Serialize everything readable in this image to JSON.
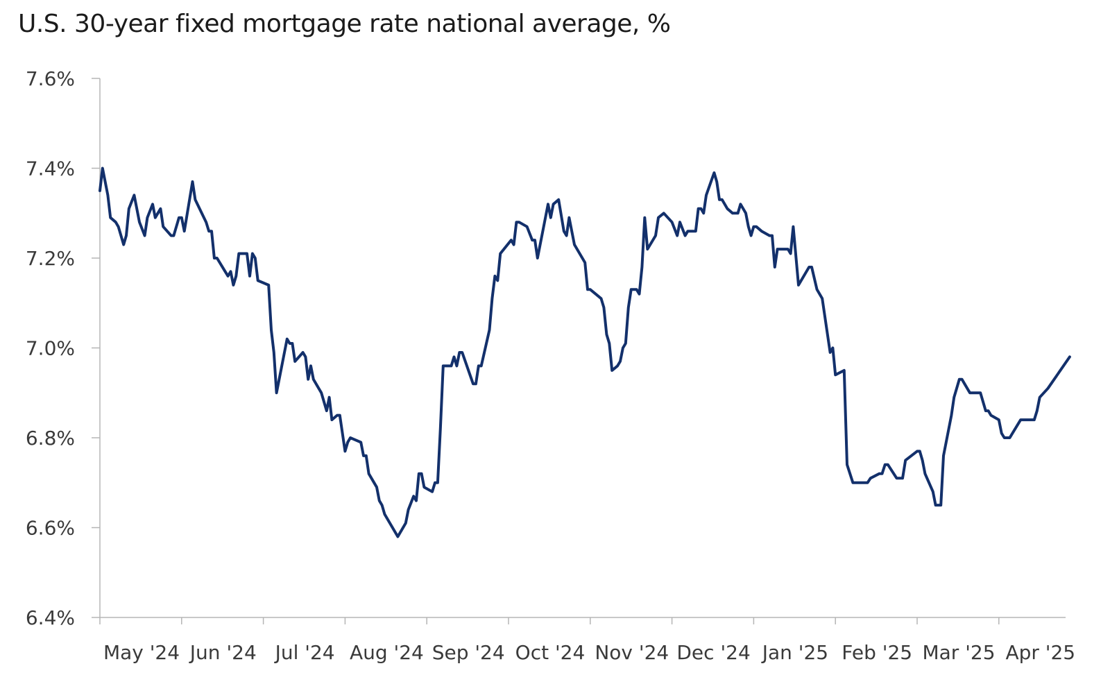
{
  "chart_data": {
    "type": "line",
    "title": "U.S. 30-year fixed mortgage rate national average, %",
    "xlabel": "",
    "ylabel": "",
    "ylim": [
      6.4,
      7.6
    ],
    "yticks": [
      "6.4%",
      "6.6%",
      "6.8%",
      "7.0%",
      "7.2%",
      "7.4%",
      "7.6%"
    ],
    "ytick_values": [
      6.4,
      6.6,
      6.8,
      7.0,
      7.2,
      7.4,
      7.6
    ],
    "xticks": [
      "May '24",
      "Jun '24",
      "Jul '24",
      "Aug '24",
      "Sep '24",
      "Oct '24",
      "Nov '24",
      "Dec '24",
      "Jan '25",
      "Feb '25",
      "Mar '25",
      "Apr '25"
    ],
    "xtick_months": [
      "2024-05",
      "2024-06",
      "2024-07",
      "2024-08",
      "2024-09",
      "2024-10",
      "2024-11",
      "2024-12",
      "2025-01",
      "2025-02",
      "2025-03",
      "2025-04"
    ],
    "grid": false,
    "line_color": "#13306b",
    "points": [
      [
        "2024-05-01",
        7.35
      ],
      [
        "2024-05-02",
        7.4
      ],
      [
        "2024-05-04",
        7.34
      ],
      [
        "2024-05-05",
        7.29
      ],
      [
        "2024-05-07",
        7.28
      ],
      [
        "2024-05-08",
        7.27
      ],
      [
        "2024-05-10",
        7.23
      ],
      [
        "2024-05-11",
        7.25
      ],
      [
        "2024-05-12",
        7.31
      ],
      [
        "2024-05-14",
        7.34
      ],
      [
        "2024-05-16",
        7.28
      ],
      [
        "2024-05-18",
        7.25
      ],
      [
        "2024-05-19",
        7.29
      ],
      [
        "2024-05-21",
        7.32
      ],
      [
        "2024-05-22",
        7.29
      ],
      [
        "2024-05-24",
        7.31
      ],
      [
        "2024-05-25",
        7.27
      ],
      [
        "2024-05-28",
        7.25
      ],
      [
        "2024-05-29",
        7.25
      ],
      [
        "2024-05-31",
        7.29
      ],
      [
        "2024-06-01",
        7.29
      ],
      [
        "2024-06-02",
        7.26
      ],
      [
        "2024-06-05",
        7.37
      ],
      [
        "2024-06-06",
        7.33
      ],
      [
        "2024-06-10",
        7.28
      ],
      [
        "2024-06-11",
        7.26
      ],
      [
        "2024-06-12",
        7.26
      ],
      [
        "2024-06-13",
        7.2
      ],
      [
        "2024-06-14",
        7.2
      ],
      [
        "2024-06-17",
        7.17
      ],
      [
        "2024-06-18",
        7.16
      ],
      [
        "2024-06-19",
        7.17
      ],
      [
        "2024-06-20",
        7.14
      ],
      [
        "2024-06-21",
        7.16
      ],
      [
        "2024-06-22",
        7.21
      ],
      [
        "2024-06-25",
        7.21
      ],
      [
        "2024-06-26",
        7.16
      ],
      [
        "2024-06-27",
        7.21
      ],
      [
        "2024-06-28",
        7.2
      ],
      [
        "2024-06-29",
        7.15
      ],
      [
        "2024-07-03",
        7.14
      ],
      [
        "2024-07-04",
        7.04
      ],
      [
        "2024-07-05",
        6.99
      ],
      [
        "2024-07-06",
        6.9
      ],
      [
        "2024-07-10",
        7.02
      ],
      [
        "2024-07-11",
        7.01
      ],
      [
        "2024-07-12",
        7.01
      ],
      [
        "2024-07-13",
        6.97
      ],
      [
        "2024-07-16",
        6.99
      ],
      [
        "2024-07-17",
        6.98
      ],
      [
        "2024-07-18",
        6.93
      ],
      [
        "2024-07-19",
        6.96
      ],
      [
        "2024-07-20",
        6.93
      ],
      [
        "2024-07-22",
        6.91
      ],
      [
        "2024-07-23",
        6.9
      ],
      [
        "2024-07-25",
        6.86
      ],
      [
        "2024-07-26",
        6.89
      ],
      [
        "2024-07-27",
        6.84
      ],
      [
        "2024-07-29",
        6.85
      ],
      [
        "2024-07-30",
        6.85
      ],
      [
        "2024-07-31",
        6.81
      ],
      [
        "2024-08-01",
        6.77
      ],
      [
        "2024-08-02",
        6.79
      ],
      [
        "2024-08-03",
        6.8
      ],
      [
        "2024-08-07",
        6.79
      ],
      [
        "2024-08-08",
        6.76
      ],
      [
        "2024-08-09",
        6.76
      ],
      [
        "2024-08-10",
        6.72
      ],
      [
        "2024-08-13",
        6.69
      ],
      [
        "2024-08-14",
        6.66
      ],
      [
        "2024-08-15",
        6.65
      ],
      [
        "2024-08-16",
        6.63
      ],
      [
        "2024-08-21",
        6.58
      ],
      [
        "2024-08-23",
        6.6
      ],
      [
        "2024-08-24",
        6.61
      ],
      [
        "2024-08-25",
        6.64
      ],
      [
        "2024-08-27",
        6.67
      ],
      [
        "2024-08-28",
        6.66
      ],
      [
        "2024-08-29",
        6.72
      ],
      [
        "2024-08-30",
        6.72
      ],
      [
        "2024-08-31",
        6.69
      ],
      [
        "2024-09-03",
        6.68
      ],
      [
        "2024-09-04",
        6.7
      ],
      [
        "2024-09-05",
        6.7
      ],
      [
        "2024-09-06",
        6.82
      ],
      [
        "2024-09-07",
        6.96
      ],
      [
        "2024-09-10",
        6.96
      ],
      [
        "2024-09-11",
        6.98
      ],
      [
        "2024-09-12",
        6.96
      ],
      [
        "2024-09-13",
        6.99
      ],
      [
        "2024-09-14",
        6.99
      ],
      [
        "2024-09-18",
        6.92
      ],
      [
        "2024-09-19",
        6.92
      ],
      [
        "2024-09-20",
        6.96
      ],
      [
        "2024-09-21",
        6.96
      ],
      [
        "2024-09-24",
        7.04
      ],
      [
        "2024-09-25",
        7.11
      ],
      [
        "2024-09-26",
        7.16
      ],
      [
        "2024-09-27",
        7.15
      ],
      [
        "2024-09-28",
        7.21
      ],
      [
        "2024-10-02",
        7.24
      ],
      [
        "2024-10-03",
        7.23
      ],
      [
        "2024-10-04",
        7.28
      ],
      [
        "2024-10-05",
        7.28
      ],
      [
        "2024-10-08",
        7.27
      ],
      [
        "2024-10-10",
        7.24
      ],
      [
        "2024-10-11",
        7.24
      ],
      [
        "2024-10-12",
        7.2
      ],
      [
        "2024-10-16",
        7.32
      ],
      [
        "2024-10-17",
        7.29
      ],
      [
        "2024-10-18",
        7.32
      ],
      [
        "2024-10-20",
        7.33
      ],
      [
        "2024-10-22",
        7.26
      ],
      [
        "2024-10-23",
        7.25
      ],
      [
        "2024-10-24",
        7.29
      ],
      [
        "2024-10-25",
        7.26
      ],
      [
        "2024-10-26",
        7.23
      ],
      [
        "2024-10-29",
        7.2
      ],
      [
        "2024-10-30",
        7.19
      ],
      [
        "2024-10-31",
        7.13
      ],
      [
        "2024-11-01",
        7.13
      ],
      [
        "2024-11-03",
        7.12
      ],
      [
        "2024-11-05",
        7.11
      ],
      [
        "2024-11-06",
        7.09
      ],
      [
        "2024-11-07",
        7.03
      ],
      [
        "2024-11-08",
        7.01
      ],
      [
        "2024-11-09",
        6.95
      ],
      [
        "2024-11-11",
        6.96
      ],
      [
        "2024-11-12",
        6.97
      ],
      [
        "2024-11-13",
        7.0
      ],
      [
        "2024-11-14",
        7.01
      ],
      [
        "2024-11-15",
        7.09
      ],
      [
        "2024-11-16",
        7.13
      ],
      [
        "2024-11-18",
        7.13
      ],
      [
        "2024-11-19",
        7.12
      ],
      [
        "2024-11-20",
        7.18
      ],
      [
        "2024-11-21",
        7.29
      ],
      [
        "2024-11-22",
        7.22
      ],
      [
        "2024-11-23",
        7.23
      ],
      [
        "2024-11-25",
        7.25
      ],
      [
        "2024-11-26",
        7.29
      ],
      [
        "2024-11-28",
        7.3
      ],
      [
        "2024-12-01",
        7.28
      ],
      [
        "2024-12-03",
        7.25
      ],
      [
        "2024-12-04",
        7.28
      ],
      [
        "2024-12-06",
        7.25
      ],
      [
        "2024-12-07",
        7.26
      ],
      [
        "2024-12-10",
        7.26
      ],
      [
        "2024-12-11",
        7.31
      ],
      [
        "2024-12-12",
        7.31
      ],
      [
        "2024-12-13",
        7.3
      ],
      [
        "2024-12-14",
        7.34
      ],
      [
        "2024-12-17",
        7.39
      ],
      [
        "2024-12-18",
        7.37
      ],
      [
        "2024-12-19",
        7.33
      ],
      [
        "2024-12-20",
        7.33
      ],
      [
        "2024-12-22",
        7.31
      ],
      [
        "2024-12-24",
        7.3
      ],
      [
        "2024-12-26",
        7.3
      ],
      [
        "2024-12-27",
        7.32
      ],
      [
        "2024-12-29",
        7.3
      ],
      [
        "2024-12-30",
        7.27
      ],
      [
        "2024-12-31",
        7.25
      ],
      [
        "2025-01-01",
        7.27
      ],
      [
        "2025-01-02",
        7.27
      ],
      [
        "2025-01-04",
        7.26
      ],
      [
        "2025-01-07",
        7.25
      ],
      [
        "2025-01-08",
        7.25
      ],
      [
        "2025-01-09",
        7.18
      ],
      [
        "2025-01-10",
        7.22
      ],
      [
        "2025-01-14",
        7.22
      ],
      [
        "2025-01-15",
        7.21
      ],
      [
        "2025-01-16",
        7.27
      ],
      [
        "2025-01-18",
        7.14
      ],
      [
        "2025-01-22",
        7.18
      ],
      [
        "2025-01-23",
        7.18
      ],
      [
        "2025-01-25",
        7.13
      ],
      [
        "2025-01-27",
        7.11
      ],
      [
        "2025-01-29",
        7.03
      ],
      [
        "2025-01-30",
        6.99
      ],
      [
        "2025-01-31",
        7.0
      ],
      [
        "2025-02-01",
        6.94
      ],
      [
        "2025-02-04",
        6.95
      ],
      [
        "2025-02-05",
        6.74
      ],
      [
        "2025-02-07",
        6.7
      ],
      [
        "2025-02-12",
        6.7
      ],
      [
        "2025-02-13",
        6.71
      ],
      [
        "2025-02-16",
        6.72
      ],
      [
        "2025-02-17",
        6.72
      ],
      [
        "2025-02-18",
        6.74
      ],
      [
        "2025-02-19",
        6.74
      ],
      [
        "2025-02-20",
        6.73
      ],
      [
        "2025-02-22",
        6.71
      ],
      [
        "2025-02-24",
        6.71
      ],
      [
        "2025-02-25",
        6.75
      ],
      [
        "2025-03-01",
        6.77
      ],
      [
        "2025-03-02",
        6.77
      ],
      [
        "2025-03-03",
        6.75
      ],
      [
        "2025-03-04",
        6.72
      ],
      [
        "2025-03-07",
        6.68
      ],
      [
        "2025-03-08",
        6.65
      ],
      [
        "2025-03-10",
        6.65
      ],
      [
        "2025-03-11",
        6.76
      ],
      [
        "2025-03-14",
        6.85
      ],
      [
        "2025-03-15",
        6.89
      ],
      [
        "2025-03-16",
        6.91
      ],
      [
        "2025-03-17",
        6.93
      ],
      [
        "2025-03-18",
        6.93
      ],
      [
        "2025-03-21",
        6.9
      ],
      [
        "2025-03-25",
        6.9
      ],
      [
        "2025-03-27",
        6.86
      ],
      [
        "2025-03-28",
        6.86
      ],
      [
        "2025-03-29",
        6.85
      ],
      [
        "2025-04-01",
        6.84
      ],
      [
        "2025-04-02",
        6.81
      ],
      [
        "2025-04-03",
        6.8
      ],
      [
        "2025-04-05",
        6.8
      ],
      [
        "2025-04-06",
        6.81
      ],
      [
        "2025-04-09",
        6.84
      ],
      [
        "2025-04-14",
        6.84
      ],
      [
        "2025-04-15",
        6.86
      ],
      [
        "2025-04-16",
        6.89
      ],
      [
        "2025-04-19",
        6.91
      ],
      [
        "2025-04-27",
        6.98
      ]
    ]
  }
}
